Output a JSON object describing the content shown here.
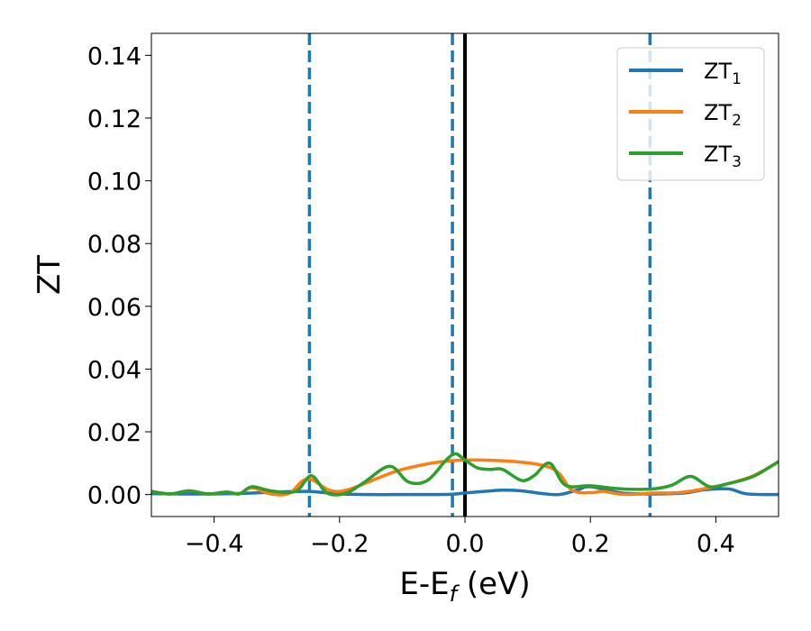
{
  "chart_data": {
    "type": "line",
    "title": "",
    "xlabel": "E-E",
    "xlabel_sub": "f",
    "xlabel_unit": " (eV)",
    "ylabel": "ZT",
    "xlim": [
      -0.5,
      0.5
    ],
    "ylim": [
      -0.007,
      0.147
    ],
    "x_ticks": [
      -0.4,
      -0.2,
      0.0,
      0.2,
      0.4
    ],
    "x_tick_labels": [
      "−0.4",
      "−0.2",
      "0.0",
      "0.2",
      "0.4"
    ],
    "y_ticks": [
      0.0,
      0.02,
      0.04,
      0.06,
      0.08,
      0.1,
      0.12,
      0.14
    ],
    "y_tick_labels": [
      "0.00",
      "0.02",
      "0.04",
      "0.06",
      "0.08",
      "0.10",
      "0.12",
      "0.14"
    ],
    "grid": false,
    "legend_position": "top-right",
    "vlines": [
      {
        "x": -0.248,
        "style": "dashed",
        "color": "#1f77b4"
      },
      {
        "x": -0.02,
        "style": "dashed",
        "color": "#1f77b4"
      },
      {
        "x": 0.0,
        "style": "solid",
        "color": "#000000"
      },
      {
        "x": 0.295,
        "style": "dashed",
        "color": "#1f77b4"
      }
    ],
    "series": [
      {
        "name": "ZT",
        "name_sub": "1",
        "color": "#1f77b4",
        "x": [
          -0.5,
          -0.45,
          -0.4,
          -0.35,
          -0.3,
          -0.25,
          -0.2,
          -0.15,
          -0.1,
          -0.05,
          -0.02,
          0.0,
          0.03,
          0.06,
          0.09,
          0.12,
          0.15,
          0.18,
          0.2,
          0.25,
          0.3,
          0.35,
          0.38,
          0.42,
          0.45,
          0.5
        ],
        "y": [
          0.0003,
          0.0002,
          0.0002,
          0.0004,
          0.0008,
          0.001,
          0.0002,
          0.0,
          0.0,
          0.0,
          0.0001,
          0.0005,
          0.001,
          0.0014,
          0.0012,
          0.0004,
          0.0,
          0.0015,
          0.0025,
          0.0005,
          0.0002,
          0.0005,
          0.0015,
          0.0018,
          0.0002,
          0.0
        ]
      },
      {
        "name": "ZT",
        "name_sub": "2",
        "color": "#ff7f0e",
        "x": [
          -0.5,
          -0.47,
          -0.44,
          -0.41,
          -0.38,
          -0.36,
          -0.34,
          -0.31,
          -0.28,
          -0.25,
          -0.2,
          -0.1,
          0.0,
          0.13,
          0.17,
          0.2,
          0.22,
          0.25,
          0.28,
          0.3,
          0.33,
          0.35,
          0.38,
          0.42,
          0.46,
          0.5
        ],
        "y": [
          0.001,
          0.0002,
          0.0012,
          0.0002,
          0.0008,
          0.0002,
          0.0022,
          0.0002,
          0.0004,
          0.005,
          0.001,
          0.008,
          0.011,
          0.009,
          0.0015,
          0.0006,
          0.001,
          0.0001,
          0.0002,
          0.0005,
          0.0005,
          0.0008,
          0.0018,
          0.0035,
          0.006,
          0.0105
        ]
      },
      {
        "name": "ZT",
        "name_sub": "3",
        "color": "#2ca02c",
        "x": [
          -0.5,
          -0.47,
          -0.44,
          -0.41,
          -0.38,
          -0.36,
          -0.34,
          -0.31,
          -0.27,
          -0.245,
          -0.22,
          -0.19,
          -0.16,
          -0.12,
          -0.09,
          -0.06,
          -0.03,
          -0.015,
          0.0,
          0.02,
          0.04,
          0.06,
          0.09,
          0.11,
          0.135,
          0.16,
          0.2,
          0.25,
          0.3,
          0.33,
          0.36,
          0.39,
          0.42,
          0.46,
          0.5
        ],
        "y": [
          0.001,
          0.0002,
          0.0012,
          0.0002,
          0.0008,
          0.0002,
          0.0025,
          0.0012,
          0.001,
          0.006,
          0.0005,
          0.0004,
          0.004,
          0.009,
          0.004,
          0.0045,
          0.011,
          0.013,
          0.011,
          0.0085,
          0.008,
          0.008,
          0.0045,
          0.006,
          0.01,
          0.003,
          0.0028,
          0.0018,
          0.0018,
          0.003,
          0.0058,
          0.0025,
          0.0035,
          0.0058,
          0.0105
        ]
      }
    ]
  }
}
